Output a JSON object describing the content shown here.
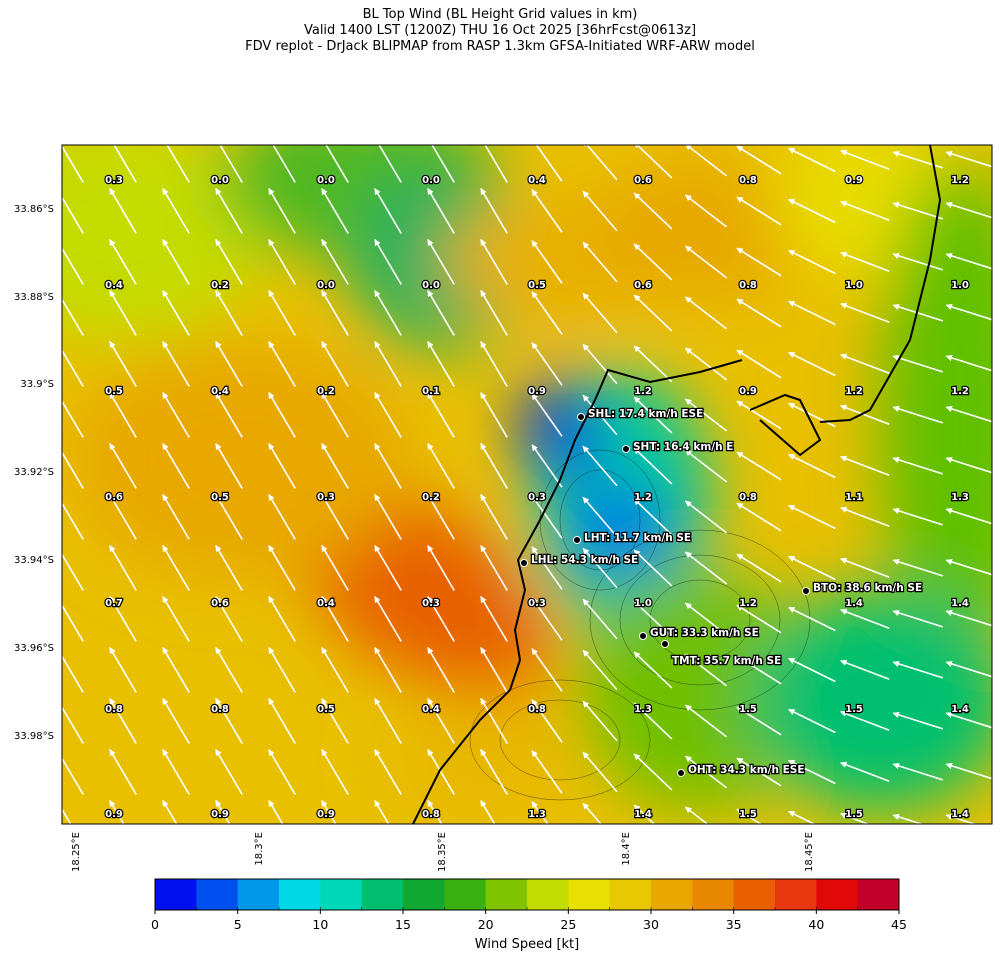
{
  "title": [
    "BL Top Wind (BL Height Grid values in km)",
    "Valid 1400 LST (1200Z) THU 16 Oct 2025 [36hrFcst@0613z]",
    "FDV replot - DrJack BLIPMAP from RASP 1.3km GFSA-Initiated WRF-ARW model"
  ],
  "lat_ticks": [
    "33.86°S",
    "33.88°S",
    "33.9°S",
    "33.92°S",
    "33.94°S",
    "33.96°S",
    "33.98°S"
  ],
  "lon_ticks": [
    "18.25°E",
    "18.3°E",
    "18.35°E",
    "18.4°E",
    "18.45°E"
  ],
  "grid_values": [
    [
      "0.3",
      "0.0",
      "0.0",
      "0.0",
      "0.4",
      "0.6",
      "0.8",
      "0.9",
      "1.2"
    ],
    [
      "0.4",
      "0.2",
      "0.0",
      "0.0",
      "0.5",
      "0.6",
      "0.8",
      "1.0",
      "1.0"
    ],
    [
      "0.5",
      "0.4",
      "0.2",
      "0.1",
      "0.9",
      "1.2",
      "0.9",
      "1.2",
      "1.2"
    ],
    [
      "0.6",
      "0.5",
      "0.3",
      "0.2",
      "0.3",
      "1.2",
      "0.8",
      "1.1",
      "1.3"
    ],
    [
      "0.7",
      "0.6",
      "0.4",
      "0.3",
      "0.3",
      "1.0",
      "1.2",
      "1.4",
      "1.4"
    ],
    [
      "0.8",
      "0.8",
      "0.5",
      "0.4",
      "0.8",
      "1.3",
      "1.5",
      "1.5",
      "1.4"
    ],
    [
      "0.9",
      "0.9",
      "0.9",
      "0.8",
      "1.3",
      "1.4",
      "1.5",
      "1.5",
      "1.4"
    ]
  ],
  "stations": [
    "SHL: 17.4 km/h ESE",
    "SHT: 16.4 km/h E",
    "LHT: 11.7 km/h SE",
    "LHL: 54.3 km/h SE",
    "BTO: 38.6 km/h SE",
    "GUT: 33.3 km/h SE",
    "TMT: 35.7 km/h SE",
    "OHT: 34.3 km/h ESE"
  ],
  "colorbar": {
    "label": "Wind Speed [kt]",
    "lim": [
      0,
      45
    ],
    "ticks": [
      0,
      5,
      10,
      15,
      20,
      25,
      30,
      35,
      40,
      45
    ],
    "colors": [
      "#0010f0",
      "#0050f0",
      "#0098e8",
      "#00d8e8",
      "#00d8b8",
      "#00c070",
      "#10a830",
      "#38b010",
      "#80c400",
      "#c0dc00",
      "#e8e000",
      "#e8c800",
      "#e8a800",
      "#e88800",
      "#e86000",
      "#e83810",
      "#e00808",
      "#c00028"
    ]
  }
}
